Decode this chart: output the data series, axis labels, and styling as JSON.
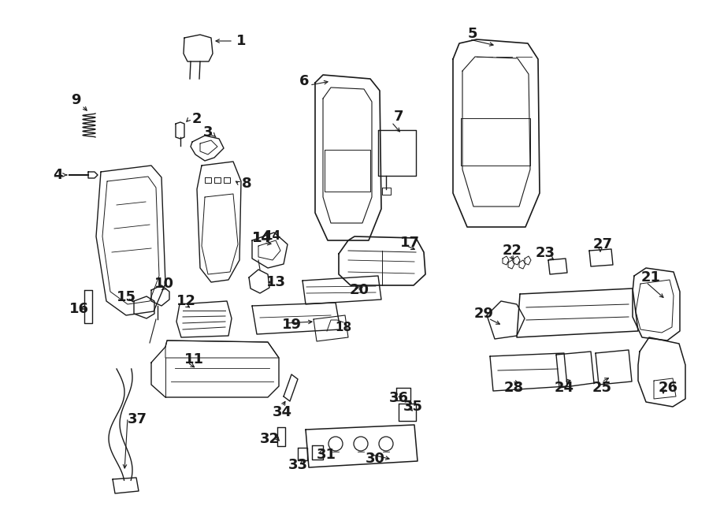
{
  "background_color": "#ffffff",
  "line_color": "#1a1a1a",
  "figsize": [
    9.0,
    6.61
  ],
  "dpi": 100,
  "parts": {
    "label_fontsize": 13,
    "label_fontweight": "bold"
  }
}
